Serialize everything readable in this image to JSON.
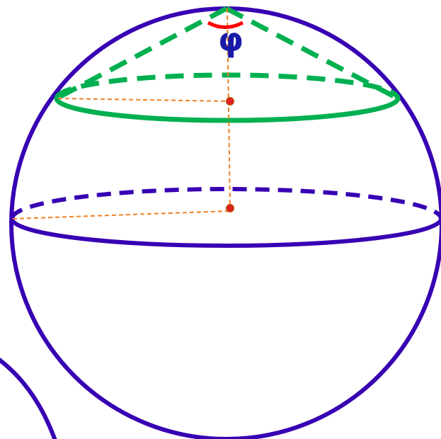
{
  "diagram": {
    "angle_label": "φ"
  },
  "colors": {
    "sphere": "#3700b3",
    "cone": "#00b050",
    "guides": "#f08020",
    "points": "#e02020",
    "angle_arc": "#ff0000",
    "label": "#1a1aa8"
  }
}
